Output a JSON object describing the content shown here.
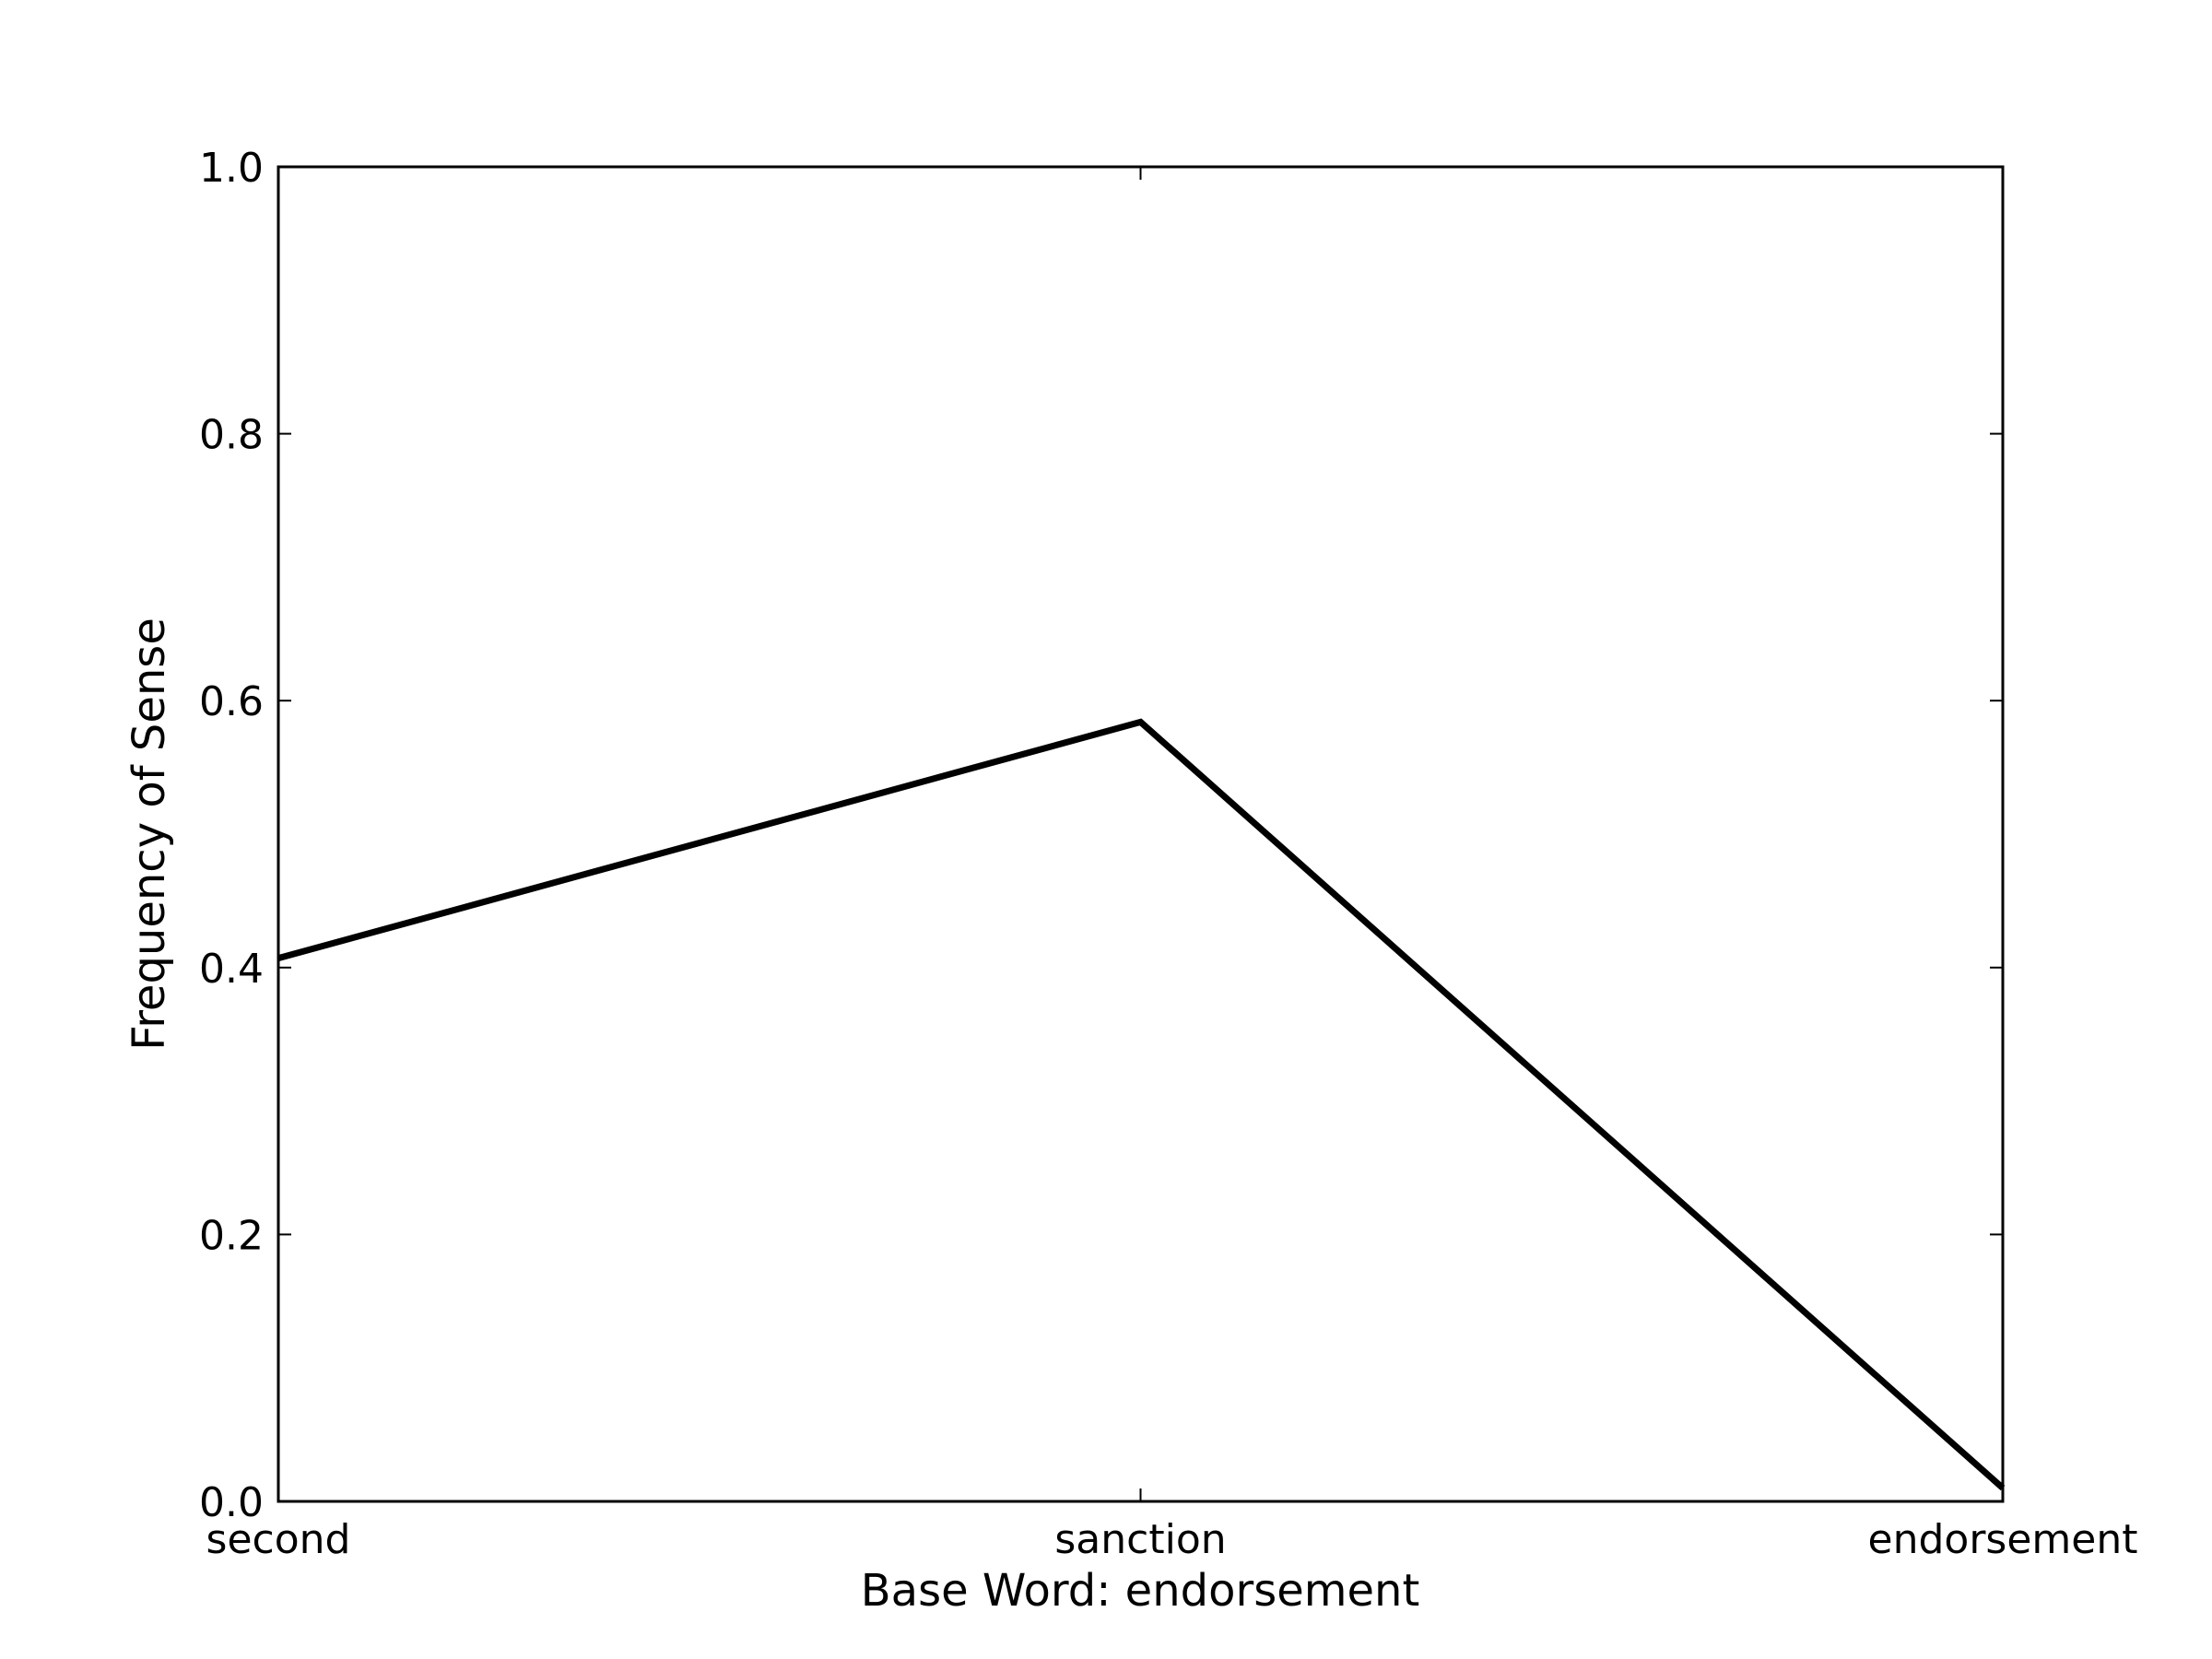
{
  "chart_data": {
    "type": "line",
    "categories": [
      "second",
      "sanction",
      "endorsement"
    ],
    "series": [
      {
        "values": [
          0.407,
          0.584,
          0.01
        ]
      }
    ],
    "title": "",
    "xlabel": "Base Word: endorsement",
    "ylabel": "Frequency of Sense",
    "ylim": [
      0.0,
      1.0
    ],
    "yticks": [
      "0.0",
      "0.2",
      "0.4",
      "0.6",
      "0.8",
      "1.0"
    ],
    "grid": false,
    "line_color": "#000000"
  }
}
